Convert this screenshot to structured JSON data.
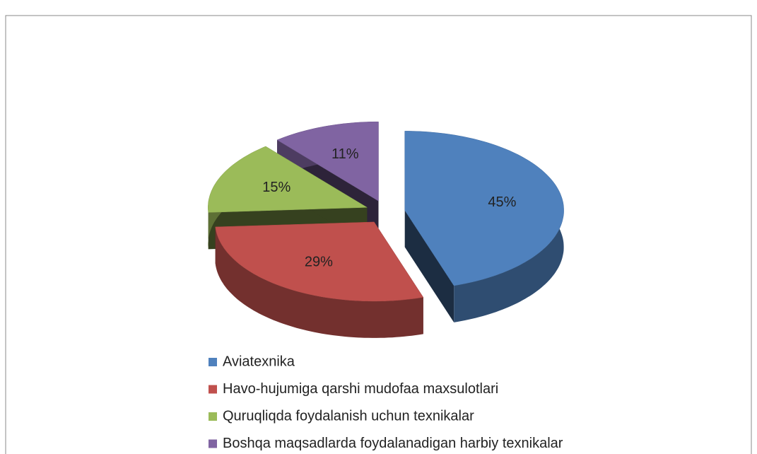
{
  "chart_data": {
    "type": "pie",
    "categories": [
      "Aviatexnika",
      "Havo-hujumiga qarshi mudofaa maxsulotlari",
      "Quruqliqda foydalanish uchun texnikalar",
      "Boshqa maqsadlarda foydalanadigan harbiy texnikalar"
    ],
    "values": [
      45,
      29,
      15,
      11
    ],
    "value_labels": [
      "45%",
      "29%",
      "15%",
      "11%"
    ],
    "colors": [
      "#4f81bd",
      "#c0504d",
      "#9bbb59",
      "#8064a2"
    ],
    "legend": "bottom"
  }
}
